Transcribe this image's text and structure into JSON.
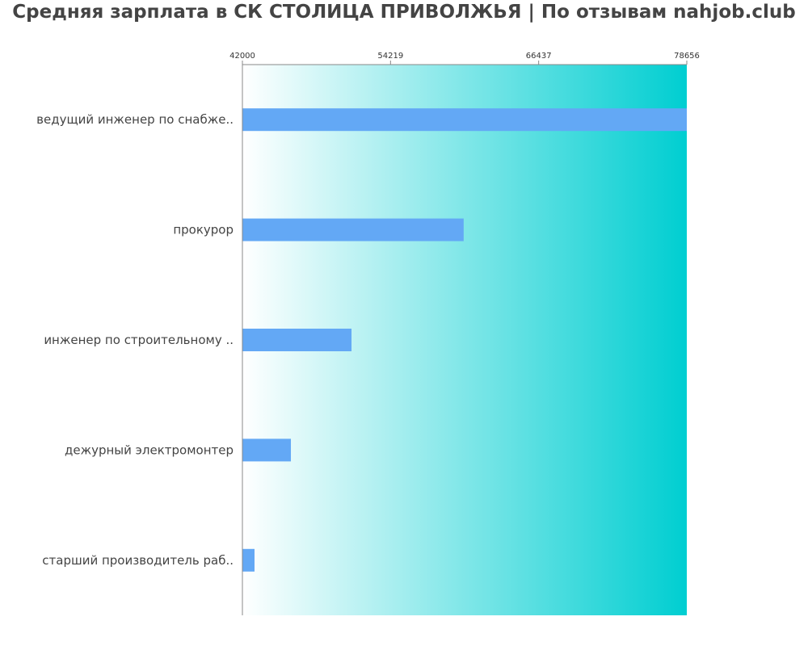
{
  "chart_data": {
    "type": "bar",
    "orientation": "horizontal",
    "title": "Средняя зарплата в СК СТОЛИЦА ПРИВОЛЖЬЯ | По отзывам nahjob.club",
    "categories": [
      "ведущий инженер по снабже..",
      "прокурор",
      "инженер по строительному ..",
      "дежурный электромонтер",
      "старший производитель раб.."
    ],
    "values": [
      78656,
      60250,
      51000,
      46000,
      43000
    ],
    "xlim": [
      42000,
      78656
    ],
    "xticks": [
      42000,
      54219,
      66437,
      78656
    ],
    "xtick_labels": [
      "42000",
      "54219",
      "66437",
      "78656"
    ],
    "xaxis_position": "top",
    "grid": false,
    "legend": "none",
    "colors": {
      "bar": "#63a8f5",
      "background_gradient_start": "#ffffff",
      "background_gradient_end": "#00ced1",
      "axis": "#888888",
      "title": "#444444",
      "text": "#444444"
    }
  }
}
